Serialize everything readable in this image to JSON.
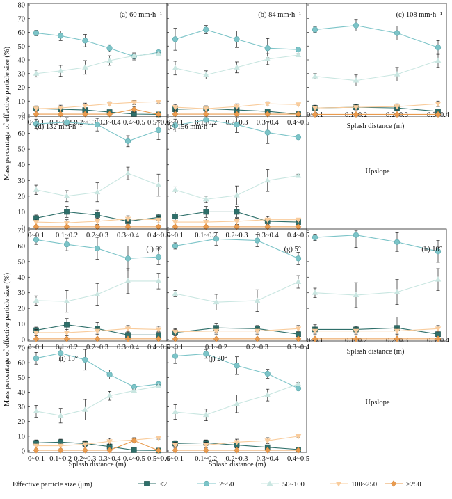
{
  "figure": {
    "ylabel": "Mass percentage of effective particle size (%)",
    "xlabel": "Splash distance (m)",
    "upslope_label": "Upslope",
    "legend": {
      "title": "Effective particle size (μm)",
      "entries": [
        "<2",
        "2~50",
        "50~100",
        "100~250",
        ">250"
      ]
    },
    "colors": {
      "<2": "#2e6f6a",
      "2~50": "#7cc4c8",
      "50~100": "#c9e6e1",
      "100~250": "#f9cc9c",
      ">250": "#ea9b4e"
    },
    "marker_shapes": {
      "<2": "square",
      "2~50": "circle",
      "50~100": "triangle-up",
      "100~250": "triangle-down",
      ">250": "diamond"
    }
  },
  "y_axis": {
    "top_ticks": [
      "0",
      "10",
      "20",
      "30",
      "40",
      "50",
      "60",
      "70",
      "80"
    ],
    "lower_ticks": [
      "0",
      "10",
      "20",
      "30",
      "40",
      "50",
      "60",
      "70"
    ]
  },
  "chart_data": [
    {
      "type": "line",
      "title": "(a) 60 mm·h⁻¹",
      "ylim": [
        0,
        80
      ],
      "categories": [
        "0~0.1",
        "0.1~0.2",
        "0.2~0.3",
        "0.3~0.4",
        "0.4~0.5",
        "0.5~0.6"
      ],
      "series": [
        {
          "name": "<2",
          "values": [
            4.5,
            4,
            3.5,
            2,
            0.5,
            0.3
          ],
          "errors": [
            1.5,
            1.5,
            1.5,
            1,
            0.5,
            0.3
          ]
        },
        {
          "name": "2~50",
          "values": [
            59.5,
            57.5,
            54,
            48.5,
            42.5,
            45.5
          ],
          "errors": [
            2,
            3.5,
            4.5,
            2.5,
            2.5,
            1
          ]
        },
        {
          "name": "50~100",
          "values": [
            30,
            32,
            34.5,
            39.5,
            43,
            44.5
          ],
          "errors": [
            2.5,
            4,
            5,
            3.5,
            2,
            1
          ]
        },
        {
          "name": "100~250",
          "values": [
            4.5,
            5,
            6.5,
            8,
            9,
            9.5
          ],
          "errors": [
            2,
            2,
            2,
            1.5,
            1.5,
            1
          ]
        },
        {
          "name": ">250",
          "values": [
            0.5,
            0.5,
            0.5,
            0.5,
            4,
            0.3
          ],
          "errors": [
            0.5,
            0.5,
            0.5,
            0.5,
            2,
            0.3
          ]
        }
      ]
    },
    {
      "type": "line",
      "title": "(b) 84 mm·h⁻¹",
      "ylim": [
        0,
        80
      ],
      "categories": [
        "0~0.1",
        "0.1~0.2",
        "0.2~0.3",
        "0.3~0.4",
        "0.4~0.5"
      ],
      "series": [
        {
          "name": "<2",
          "values": [
            4,
            4.5,
            3.5,
            2.5,
            0.5
          ],
          "errors": [
            2,
            2,
            1.5,
            1,
            0.5
          ]
        },
        {
          "name": "2~50",
          "values": [
            55,
            62,
            55,
            48.5,
            47.5
          ],
          "errors": [
            8,
            3,
            6,
            7,
            1
          ]
        },
        {
          "name": "50~100",
          "values": [
            34,
            29,
            34.5,
            40.5,
            43.5
          ],
          "errors": [
            5,
            3,
            4,
            4,
            1
          ]
        },
        {
          "name": "100~250",
          "values": [
            5.5,
            4.5,
            6,
            8,
            7.5
          ],
          "errors": [
            2,
            2,
            2,
            1.5,
            1
          ]
        },
        {
          "name": ">250",
          "values": [
            0.5,
            0.5,
            0.5,
            0.5,
            0.5
          ],
          "errors": [
            0.5,
            0.5,
            0.5,
            0.5,
            0.5
          ]
        }
      ]
    },
    {
      "type": "line",
      "title": "(c) 108 mm·h⁻¹",
      "ylim": [
        0,
        80
      ],
      "categories": [
        "0~0.1",
        "0.1~0.2",
        "0.2~0.3",
        "0.3~0.4"
      ],
      "series": [
        {
          "name": "<2",
          "values": [
            5,
            5.5,
            5,
            2.5
          ],
          "errors": [
            1.5,
            1.5,
            1.5,
            1
          ]
        },
        {
          "name": "2~50",
          "values": [
            62,
            65,
            59.5,
            49
          ],
          "errors": [
            2,
            4,
            5,
            5
          ]
        },
        {
          "name": "50~100",
          "values": [
            28,
            25,
            29.5,
            39.5
          ],
          "errors": [
            2,
            4,
            5,
            5
          ]
        },
        {
          "name": "100~250",
          "values": [
            5,
            5.5,
            6,
            8
          ],
          "errors": [
            2,
            2,
            2,
            2
          ]
        },
        {
          "name": ">250",
          "values": [
            0.3,
            0.3,
            0.3,
            0.3
          ],
          "errors": [
            0.3,
            0.3,
            0.3,
            0.3
          ]
        }
      ]
    },
    {
      "type": "line",
      "title": "(d) 132 mm·h⁻¹",
      "ylim": [
        0,
        70
      ],
      "categories": [
        "0~0.1",
        "0.1~0.2",
        "0.2~0.3",
        "0.3~0.4",
        "0.4~0.5"
      ],
      "series": [
        {
          "name": "<2",
          "values": [
            6,
            10,
            8,
            4,
            6.5
          ],
          "errors": [
            2,
            3.5,
            3,
            2,
            2
          ]
        },
        {
          "name": "2~50",
          "values": [
            66,
            67,
            65.5,
            55,
            62
          ],
          "errors": [
            3,
            3,
            4,
            3.5,
            6
          ]
        },
        {
          "name": "50~100",
          "values": [
            24,
            20,
            22.5,
            34.5,
            27
          ],
          "errors": [
            3,
            3.5,
            6,
            4,
            7
          ]
        },
        {
          "name": "100~250",
          "values": [
            3.5,
            3,
            4,
            5.5,
            5
          ],
          "errors": [
            2,
            2,
            2,
            2,
            2
          ]
        },
        {
          "name": ">250",
          "values": [
            0.5,
            0.5,
            0.5,
            0.5,
            0.5
          ],
          "errors": [
            0.5,
            0.5,
            0.5,
            0.5,
            0.5
          ]
        }
      ]
    },
    {
      "type": "line",
      "title": "(e) 156 mm·h⁻¹",
      "ylim": [
        0,
        70
      ],
      "categories": [
        "0~0.1",
        "0.1~0.2",
        "0.2~0.3",
        "0.3~0.4",
        "0.4~0.5"
      ],
      "series": [
        {
          "name": "<2",
          "values": [
            7,
            10,
            10,
            4,
            3.5
          ],
          "errors": [
            3,
            3.5,
            3.5,
            2,
            1
          ]
        },
        {
          "name": "2~50",
          "values": [
            65,
            68.5,
            65.5,
            60.5,
            57.5
          ],
          "errors": [
            4,
            3,
            5,
            7,
            1
          ]
        },
        {
          "name": "50~100",
          "values": [
            24,
            18,
            20.5,
            30,
            33
          ],
          "errors": [
            2,
            2,
            6,
            7,
            1
          ]
        },
        {
          "name": "100~250",
          "values": [
            3.5,
            3.5,
            4,
            5,
            5
          ],
          "errors": [
            2,
            2,
            2,
            2,
            1
          ]
        },
        {
          "name": ">250",
          "values": [
            0.5,
            0.5,
            0.5,
            0.5,
            0.5
          ],
          "errors": [
            0.5,
            0.5,
            0.5,
            0.5,
            0.5
          ]
        }
      ]
    },
    {
      "type": "line",
      "title": "(f) 0°",
      "ylim": [
        0,
        70
      ],
      "categories": [
        "0~0.1",
        "0.1~0.2",
        "0.2~0.3",
        "0.3~0.4",
        "0.4~0.5"
      ],
      "series": [
        {
          "name": "<2",
          "values": [
            6,
            9.5,
            7,
            3,
            3
          ],
          "errors": [
            2,
            4,
            4,
            2,
            2
          ]
        },
        {
          "name": "2~50",
          "values": [
            64,
            61,
            58.5,
            52,
            53
          ],
          "errors": [
            3,
            4,
            7,
            8,
            5
          ]
        },
        {
          "name": "50~100",
          "values": [
            25,
            24.5,
            29,
            37.5,
            37.5
          ],
          "errors": [
            3,
            7,
            7,
            8,
            5
          ]
        },
        {
          "name": "100~250",
          "values": [
            4.5,
            4.5,
            5.5,
            7,
            6.5
          ],
          "errors": [
            2,
            2,
            2,
            2,
            2
          ]
        },
        {
          "name": ">250",
          "values": [
            0.5,
            0.5,
            0.5,
            0.5,
            0.5
          ],
          "errors": [
            0.5,
            0.5,
            0.5,
            0.5,
            0.5
          ]
        }
      ]
    },
    {
      "type": "line",
      "title": "(g) 5°",
      "ylim": [
        0,
        70
      ],
      "categories": [
        "0~0.1",
        "0.1~0.2",
        "0.2~0.3",
        "0.3~0.4"
      ],
      "series": [
        {
          "name": "<2",
          "values": [
            4.5,
            7.5,
            7,
            3.5
          ],
          "errors": [
            2,
            3,
            2,
            2
          ]
        },
        {
          "name": "2~50",
          "values": [
            60,
            64.5,
            63.5,
            52
          ],
          "errors": [
            2,
            4,
            4,
            4
          ]
        },
        {
          "name": "50~100",
          "values": [
            29.5,
            24,
            25,
            37
          ],
          "errors": [
            2,
            5,
            7,
            4
          ]
        },
        {
          "name": "100~250",
          "values": [
            5,
            5.5,
            5.5,
            7
          ],
          "errors": [
            2,
            2,
            2,
            2
          ]
        },
        {
          "name": ">250",
          "values": [
            0.5,
            0.5,
            0.5,
            0.5
          ],
          "errors": [
            0.5,
            0.5,
            0.5,
            0.5
          ]
        }
      ]
    },
    {
      "type": "line",
      "title": "(h) 10°",
      "ylim": [
        0,
        70
      ],
      "categories": [
        "0~0.1",
        "0.1~0.2",
        "0.2~0.3",
        "0.3~0.4"
      ],
      "series": [
        {
          "name": "<2",
          "values": [
            6.5,
            6.5,
            7.5,
            3.5
          ],
          "errors": [
            3,
            2,
            7,
            2
          ]
        },
        {
          "name": "2~50",
          "values": [
            65.5,
            67,
            62.5,
            56.5
          ],
          "errors": [
            2,
            8,
            6,
            7
          ]
        },
        {
          "name": "50~100",
          "values": [
            30,
            28.5,
            30.5,
            38.5
          ],
          "errors": [
            3,
            8,
            8,
            7
          ]
        },
        {
          "name": "100~250",
          "values": [
            5.5,
            5.5,
            5.5,
            7
          ],
          "errors": [
            2,
            2,
            2,
            2
          ]
        },
        {
          "name": ">250",
          "values": [
            0.5,
            0.5,
            0.5,
            0.5
          ],
          "errors": [
            0.5,
            0.5,
            0.5,
            0.5
          ]
        }
      ]
    },
    {
      "type": "line",
      "title": "(i) 15°",
      "ylim": [
        0,
        70
      ],
      "categories": [
        "0~0.1",
        "0.1~0.2",
        "0.2~0.3",
        "0.3~0.4",
        "0.4~0.5",
        "0.5~0.6"
      ],
      "series": [
        {
          "name": "<2",
          "values": [
            5.5,
            6,
            5,
            3,
            0.5,
            0.3
          ],
          "errors": [
            2,
            2,
            2,
            2,
            0.5,
            0.3
          ]
        },
        {
          "name": "2~50",
          "values": [
            63,
            66.5,
            62,
            52,
            43.5,
            45.5
          ],
          "errors": [
            4,
            5,
            7,
            3,
            1,
            1
          ]
        },
        {
          "name": "50~100",
          "values": [
            27,
            24,
            28,
            37.5,
            41,
            44
          ],
          "errors": [
            4,
            5,
            7,
            3,
            1,
            1
          ]
        },
        {
          "name": "100~250",
          "values": [
            3.5,
            3.5,
            4.5,
            6.5,
            7.5,
            9
          ],
          "errors": [
            2,
            2,
            2,
            2,
            1.5,
            1
          ]
        },
        {
          "name": ">250",
          "values": [
            0.5,
            0.5,
            0.5,
            0.5,
            7,
            0.3
          ],
          "errors": [
            0.5,
            0.5,
            0.5,
            0.5,
            1.5,
            0.3
          ]
        }
      ]
    },
    {
      "type": "line",
      "title": "(j) 20°",
      "ylim": [
        0,
        70
      ],
      "categories": [
        "0~0.1",
        "0.1~0.2",
        "0.2~0.3",
        "0.3~0.4",
        "0.4~0.5"
      ],
      "series": [
        {
          "name": "<2",
          "values": [
            5,
            5.5,
            4,
            2.5,
            1
          ],
          "errors": [
            2,
            2,
            2,
            1.5,
            0.5
          ]
        },
        {
          "name": "2~50",
          "values": [
            64.5,
            66,
            58,
            52.5,
            42.5
          ],
          "errors": [
            5,
            3,
            6,
            3,
            1
          ]
        },
        {
          "name": "50~100",
          "values": [
            26.5,
            24.5,
            32,
            38,
            45.5
          ],
          "errors": [
            5,
            4,
            6,
            4,
            1
          ]
        },
        {
          "name": "100~250",
          "values": [
            4,
            4,
            6,
            7,
            10
          ],
          "errors": [
            2,
            2,
            2,
            2,
            1
          ]
        },
        {
          "name": ">250",
          "values": [
            0.5,
            0.5,
            0.5,
            0.5,
            0.5
          ],
          "errors": [
            0.5,
            0.5,
            0.5,
            0.5,
            0.5
          ]
        }
      ]
    }
  ]
}
